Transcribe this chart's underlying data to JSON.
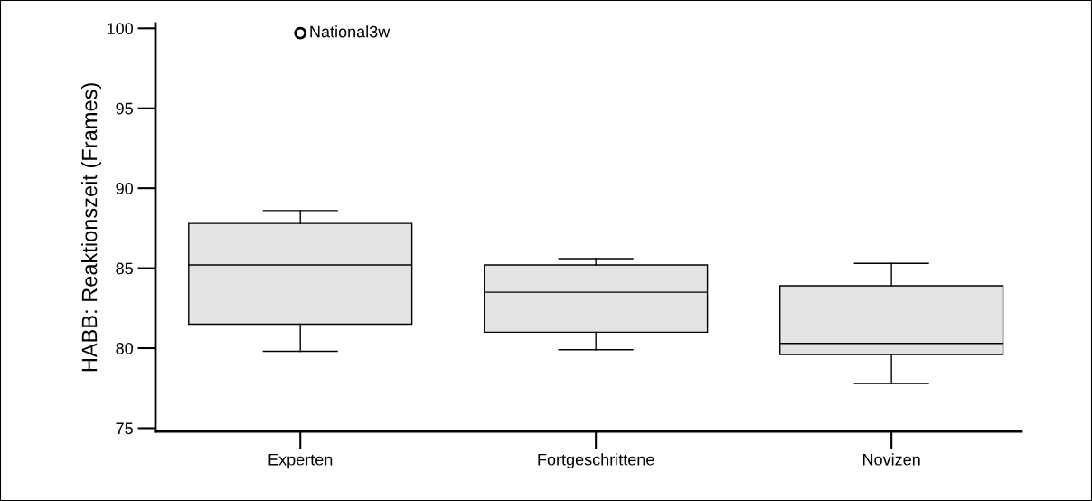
{
  "chart_data": {
    "type": "box",
    "ylabel": "HABB: Reaktionszeit (Frames)",
    "categories": [
      "Experten",
      "Fortgeschrittene",
      "Novizen"
    ],
    "boxes": [
      {
        "low": 79.8,
        "q1": 81.5,
        "median": 85.2,
        "q3": 87.8,
        "high": 88.6,
        "outliers": [
          99.7
        ]
      },
      {
        "low": 79.9,
        "q1": 81.0,
        "median": 83.5,
        "q3": 85.2,
        "high": 85.6
      },
      {
        "low": 77.8,
        "q1": 79.6,
        "median": 80.3,
        "q3": 83.9,
        "high": 85.3
      }
    ],
    "color": "#e3e3e3",
    "ylim": [
      74.8,
      100.3
    ],
    "yticks": [
      75,
      80,
      85,
      90,
      95,
      100
    ],
    "grid": false,
    "annotations": [
      "National3w"
    ]
  }
}
